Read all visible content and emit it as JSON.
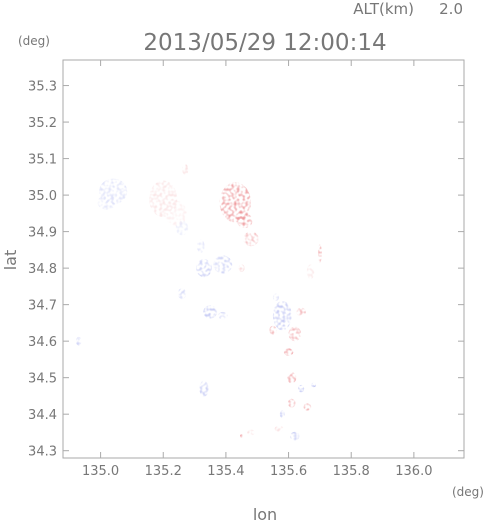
{
  "header": {
    "alt_label": "ALT(km)",
    "alt_value": "2.0",
    "timestamp": "2013/05/29 12:00:14"
  },
  "chart_data": {
    "type": "heatmap",
    "xlabel": "lon",
    "ylabel": "lat",
    "x_unit": "(deg)",
    "y_unit": "(deg)",
    "xlim": [
      134.88,
      136.16
    ],
    "ylim": [
      34.28,
      35.37
    ],
    "x_ticks": [
      135.0,
      135.2,
      135.4,
      135.6,
      135.8,
      136.0
    ],
    "x_tick_labels": [
      "135.0",
      "135.2",
      "135.4",
      "135.6",
      "135.8",
      "136.0"
    ],
    "y_ticks": [
      34.3,
      34.4,
      34.5,
      34.6,
      34.7,
      34.8,
      34.9,
      35.0,
      35.1,
      35.2,
      35.3
    ],
    "y_tick_labels": [
      "34.3",
      "34.4",
      "34.5",
      "34.6",
      "34.7",
      "34.8",
      "34.9",
      "35.0",
      "35.1",
      "35.2",
      "35.3"
    ],
    "grid": false,
    "colors": {
      "positive": "#e8757a",
      "negative": "#7a86e6",
      "frame": "#aaaaaa"
    },
    "regions": [
      {
        "lon": 135.04,
        "lat": 35.01,
        "rx": 0.045,
        "ry": 0.035,
        "v": -0.3
      },
      {
        "lon": 135.02,
        "lat": 34.98,
        "rx": 0.03,
        "ry": 0.02,
        "v": -0.25
      },
      {
        "lon": 135.2,
        "lat": 34.99,
        "rx": 0.045,
        "ry": 0.05,
        "v": 0.25
      },
      {
        "lon": 135.24,
        "lat": 34.95,
        "rx": 0.035,
        "ry": 0.035,
        "v": 0.15
      },
      {
        "lon": 135.26,
        "lat": 34.91,
        "rx": 0.02,
        "ry": 0.02,
        "v": -0.2
      },
      {
        "lon": 135.27,
        "lat": 35.07,
        "rx": 0.01,
        "ry": 0.015,
        "v": 0.3
      },
      {
        "lon": 135.43,
        "lat": 34.98,
        "rx": 0.05,
        "ry": 0.055,
        "v": 0.85
      },
      {
        "lon": 135.46,
        "lat": 34.93,
        "rx": 0.025,
        "ry": 0.02,
        "v": 0.75
      },
      {
        "lon": 135.48,
        "lat": 34.88,
        "rx": 0.025,
        "ry": 0.02,
        "v": 0.6
      },
      {
        "lon": 135.32,
        "lat": 34.86,
        "rx": 0.012,
        "ry": 0.018,
        "v": -0.25
      },
      {
        "lon": 135.33,
        "lat": 34.8,
        "rx": 0.025,
        "ry": 0.025,
        "v": -0.5
      },
      {
        "lon": 135.39,
        "lat": 34.81,
        "rx": 0.03,
        "ry": 0.025,
        "v": -0.45
      },
      {
        "lon": 135.45,
        "lat": 34.8,
        "rx": 0.01,
        "ry": 0.01,
        "v": 0.4
      },
      {
        "lon": 135.26,
        "lat": 34.73,
        "rx": 0.013,
        "ry": 0.015,
        "v": -0.45
      },
      {
        "lon": 135.35,
        "lat": 34.68,
        "rx": 0.022,
        "ry": 0.018,
        "v": -0.55
      },
      {
        "lon": 135.39,
        "lat": 34.67,
        "rx": 0.015,
        "ry": 0.01,
        "v": -0.4
      },
      {
        "lon": 134.93,
        "lat": 34.6,
        "rx": 0.009,
        "ry": 0.012,
        "v": -0.5
      },
      {
        "lon": 135.33,
        "lat": 34.47,
        "rx": 0.015,
        "ry": 0.022,
        "v": -0.5
      },
      {
        "lon": 135.58,
        "lat": 34.67,
        "rx": 0.03,
        "ry": 0.04,
        "v": -0.55
      },
      {
        "lon": 135.62,
        "lat": 34.62,
        "rx": 0.02,
        "ry": 0.02,
        "v": 0.7
      },
      {
        "lon": 135.55,
        "lat": 34.63,
        "rx": 0.012,
        "ry": 0.012,
        "v": 0.85
      },
      {
        "lon": 135.64,
        "lat": 34.68,
        "rx": 0.015,
        "ry": 0.012,
        "v": 0.65
      },
      {
        "lon": 135.6,
        "lat": 34.57,
        "rx": 0.015,
        "ry": 0.01,
        "v": 0.8
      },
      {
        "lon": 135.56,
        "lat": 34.72,
        "rx": 0.01,
        "ry": 0.01,
        "v": -0.4
      },
      {
        "lon": 135.67,
        "lat": 34.79,
        "rx": 0.012,
        "ry": 0.02,
        "v": 0.2
      },
      {
        "lon": 135.7,
        "lat": 34.84,
        "rx": 0.006,
        "ry": 0.025,
        "v": 0.75
      },
      {
        "lon": 135.61,
        "lat": 34.5,
        "rx": 0.015,
        "ry": 0.015,
        "v": 0.7
      },
      {
        "lon": 135.64,
        "lat": 34.47,
        "rx": 0.01,
        "ry": 0.01,
        "v": -0.7
      },
      {
        "lon": 135.68,
        "lat": 34.48,
        "rx": 0.008,
        "ry": 0.006,
        "v": -0.85
      },
      {
        "lon": 135.61,
        "lat": 34.43,
        "rx": 0.012,
        "ry": 0.012,
        "v": 0.7
      },
      {
        "lon": 135.66,
        "lat": 34.42,
        "rx": 0.012,
        "ry": 0.01,
        "v": 0.75
      },
      {
        "lon": 135.58,
        "lat": 34.4,
        "rx": 0.008,
        "ry": 0.01,
        "v": -0.6
      },
      {
        "lon": 135.62,
        "lat": 34.34,
        "rx": 0.015,
        "ry": 0.012,
        "v": -0.5
      },
      {
        "lon": 135.57,
        "lat": 34.36,
        "rx": 0.015,
        "ry": 0.008,
        "v": 0.3
      },
      {
        "lon": 135.48,
        "lat": 34.35,
        "rx": 0.012,
        "ry": 0.008,
        "v": 0.3
      },
      {
        "lon": 135.45,
        "lat": 34.34,
        "rx": 0.005,
        "ry": 0.005,
        "v": 0.7
      }
    ]
  }
}
